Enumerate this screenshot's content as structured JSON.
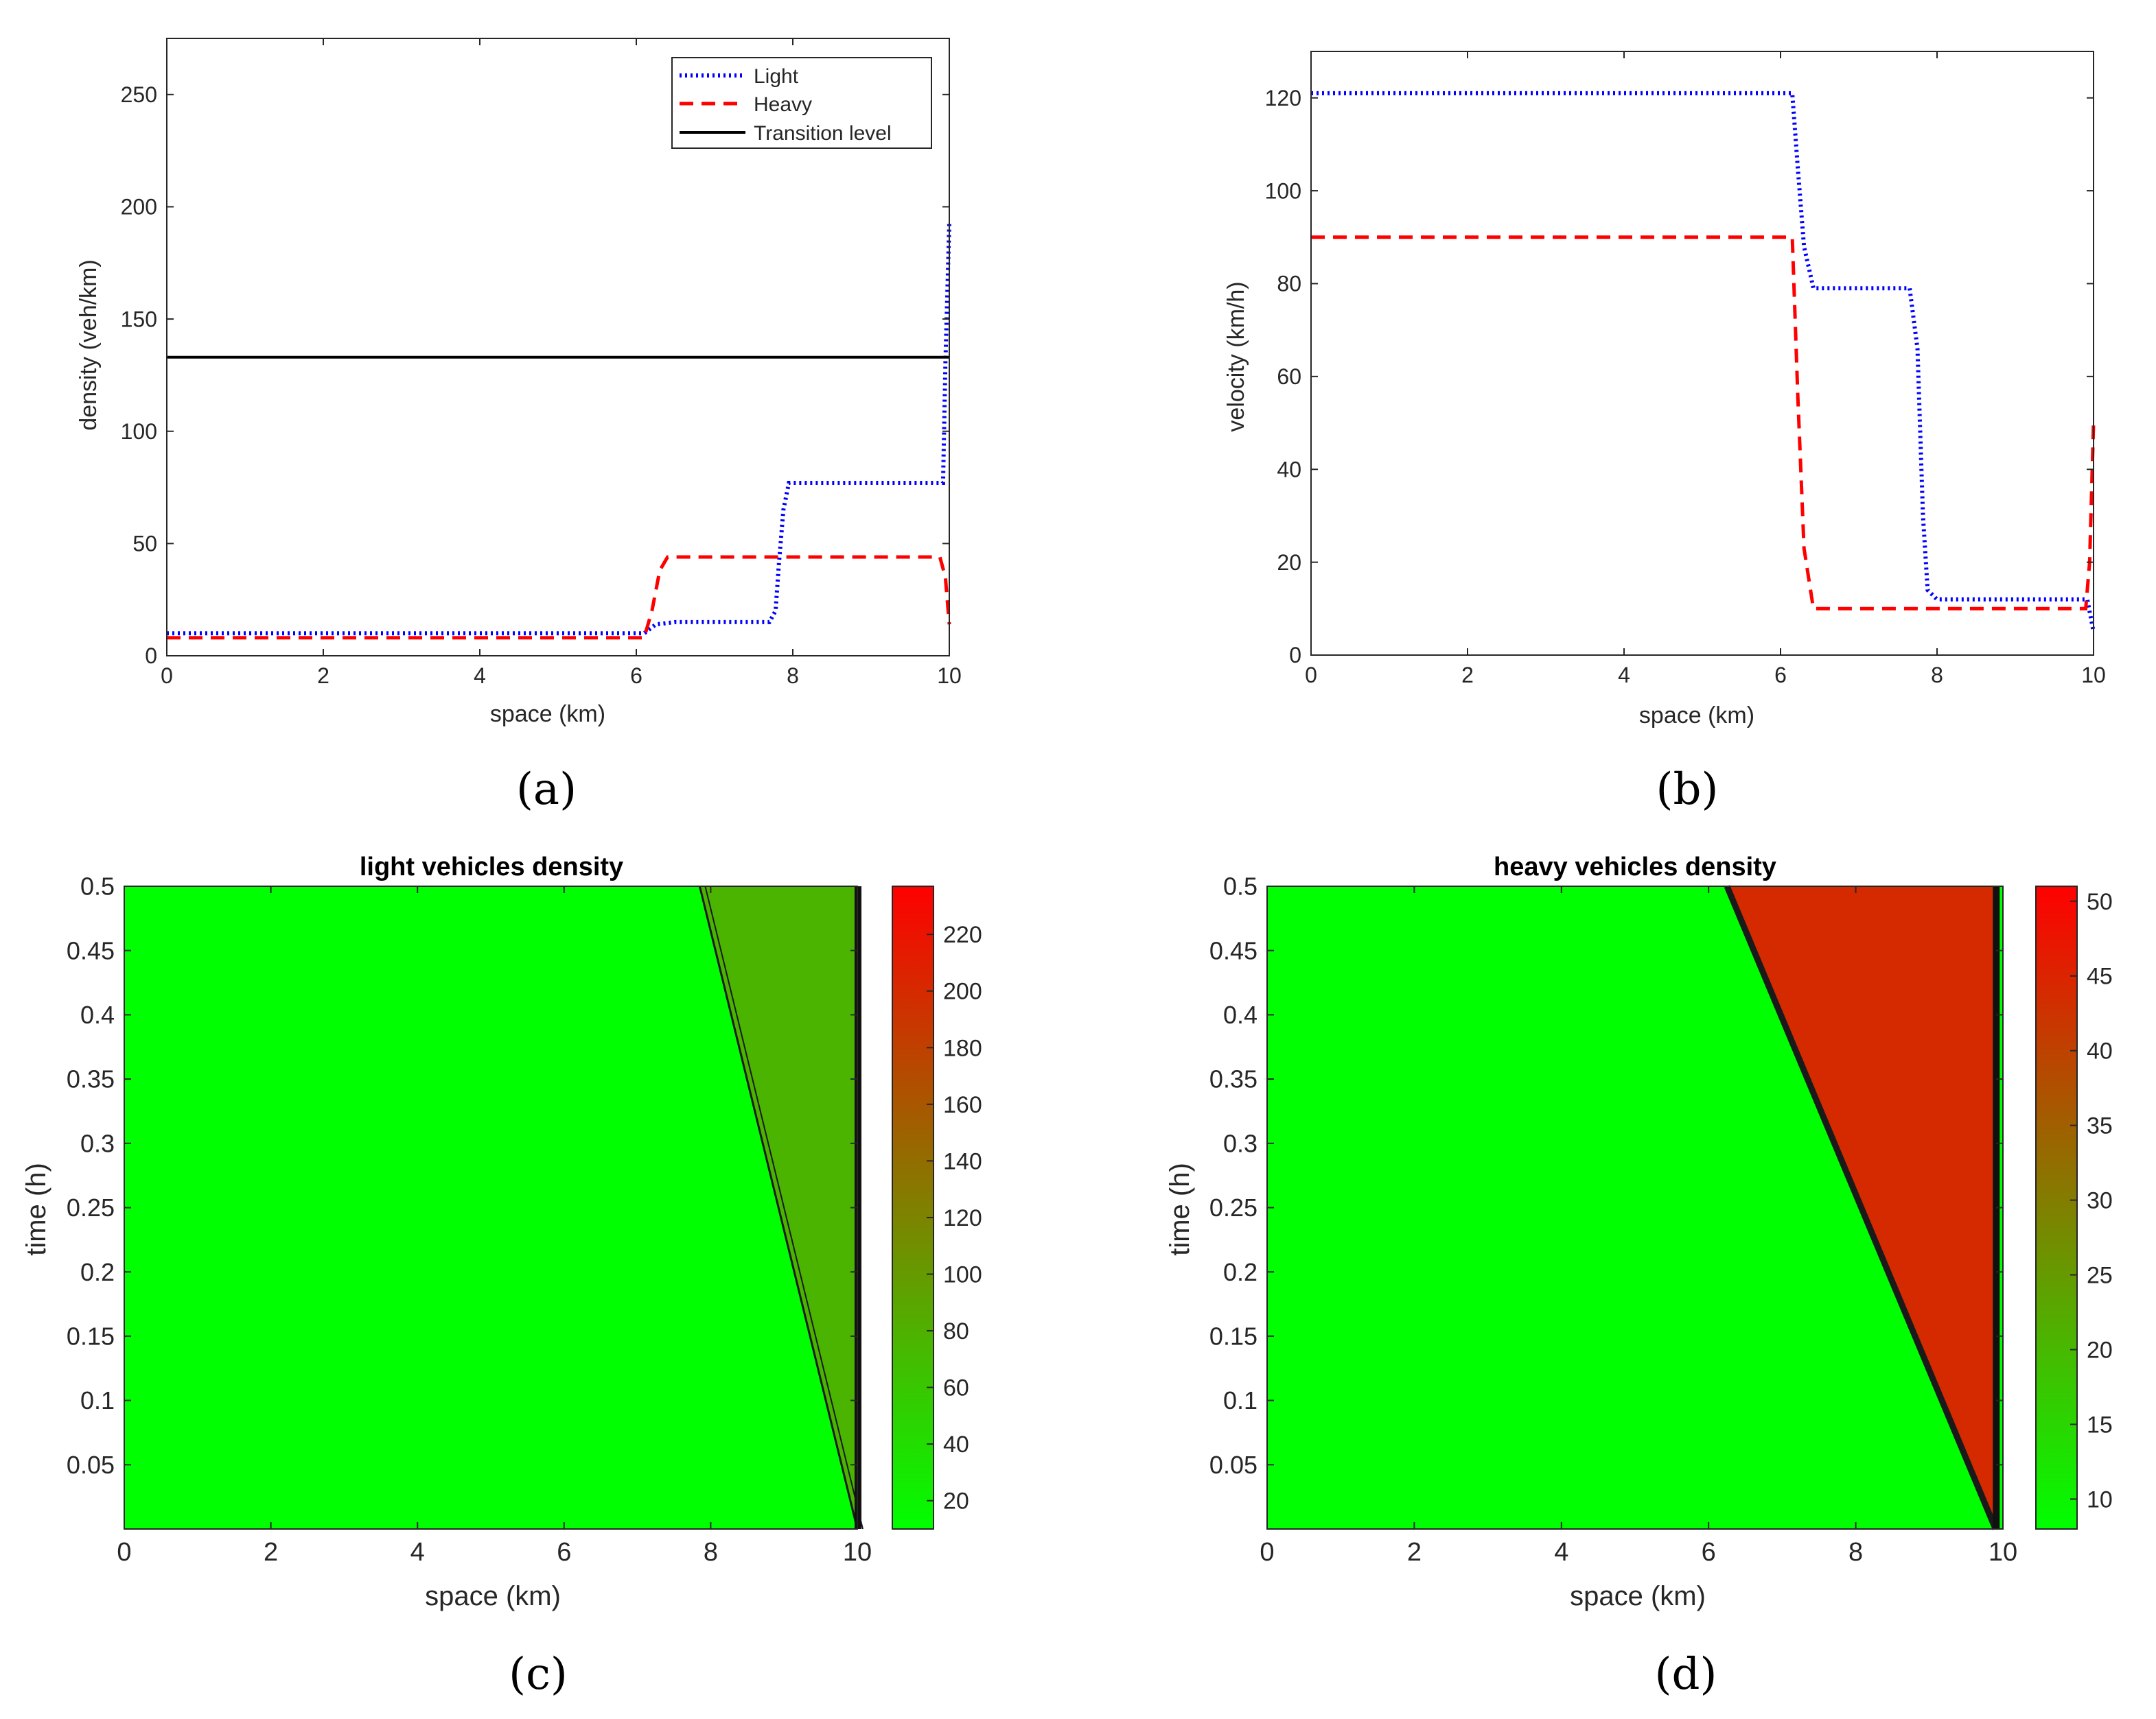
{
  "chart_data": [
    {
      "id": "a",
      "type": "line",
      "panel_label": "(a)",
      "title": "",
      "xlabel": "space (km)",
      "ylabel": "density (veh/km)",
      "xlim": [
        0,
        10
      ],
      "ylim": [
        0,
        275
      ],
      "xticks": [
        0,
        2,
        4,
        6,
        8,
        10
      ],
      "yticks": [
        0,
        50,
        100,
        150,
        200,
        250
      ],
      "legend_position": "top-right",
      "series": [
        {
          "name": "Light",
          "style": "dotted",
          "color": "#0000ff",
          "x": [
            0,
            6.1,
            6.25,
            6.5,
            7.7,
            7.78,
            7.82,
            7.88,
            7.95,
            9.92,
            9.95,
            10
          ],
          "y": [
            10,
            10,
            14,
            15,
            15,
            20,
            40,
            65,
            77,
            77,
            130,
            193
          ]
        },
        {
          "name": "Heavy",
          "style": "dashed",
          "color": "#ff0000",
          "x": [
            0,
            6.1,
            6.2,
            6.3,
            6.4,
            9.88,
            9.95,
            10
          ],
          "y": [
            8,
            8,
            20,
            38,
            44,
            44,
            35,
            14
          ]
        },
        {
          "name": "Transition level",
          "style": "solid",
          "color": "#000000",
          "x": [
            0,
            10
          ],
          "y": [
            133,
            133
          ]
        }
      ]
    },
    {
      "id": "b",
      "type": "line",
      "panel_label": "(b)",
      "title": "",
      "xlabel": "space (km)",
      "ylabel": "velocity (km/h)",
      "xlim": [
        0,
        10
      ],
      "ylim": [
        0,
        130
      ],
      "xticks": [
        0,
        2,
        4,
        6,
        8,
        10
      ],
      "yticks": [
        0,
        20,
        40,
        60,
        80,
        100,
        120
      ],
      "series": [
        {
          "name": "Light",
          "style": "dotted",
          "color": "#0000ff",
          "x": [
            0,
            6.15,
            6.22,
            6.3,
            6.42,
            7.65,
            7.75,
            7.82,
            7.88,
            8.0,
            9.92,
            10
          ],
          "y": [
            121,
            121,
            105,
            88,
            79,
            79,
            66,
            30,
            14,
            12,
            12,
            5
          ]
        },
        {
          "name": "Heavy",
          "style": "dashed",
          "color": "#ff0000",
          "x": [
            0,
            6.15,
            6.22,
            6.3,
            6.42,
            9.9,
            9.95,
            10
          ],
          "y": [
            90,
            90,
            56,
            23,
            10,
            10,
            20,
            50
          ]
        }
      ]
    },
    {
      "id": "c",
      "type": "heatmap",
      "panel_label": "(c)",
      "title": "light vehicles density",
      "xlabel": "space (km)",
      "ylabel": "time (h)",
      "xlim": [
        0,
        10
      ],
      "ylim": [
        0,
        0.5
      ],
      "xticks": [
        0,
        2,
        4,
        6,
        8,
        10
      ],
      "yticks": [
        0.05,
        0.1,
        0.15,
        0.2,
        0.25,
        0.3,
        0.35,
        0.4,
        0.45,
        0.5
      ],
      "ytick_labels": [
        "0.05",
        "0.1",
        "0.15",
        "0.2",
        "0.25",
        "0.3",
        "0.35",
        "0.4",
        "0.45",
        "0.5"
      ],
      "colorbar": {
        "range": [
          10,
          237
        ],
        "ticks": [
          20,
          40,
          60,
          80,
          100,
          120,
          140,
          160,
          180,
          200,
          220
        ]
      },
      "regions": [
        {
          "name": "free flow",
          "value": 10
        },
        {
          "name": "congested wedge",
          "value": 77,
          "vertices": [
            [
              7.85,
              0.5
            ],
            [
              10,
              0.0
            ],
            [
              10,
              0.5
            ]
          ]
        }
      ],
      "front_line": [
        [
          10,
          0.0
        ],
        [
          7.85,
          0.5
        ]
      ]
    },
    {
      "id": "d",
      "type": "heatmap",
      "panel_label": "(d)",
      "title": "heavy vehicles density",
      "xlabel": "space (km)",
      "ylabel": "time (h)",
      "xlim": [
        0,
        10
      ],
      "ylim": [
        0,
        0.5
      ],
      "xticks": [
        0,
        2,
        4,
        6,
        8,
        10
      ],
      "yticks": [
        0.05,
        0.1,
        0.15,
        0.2,
        0.25,
        0.3,
        0.35,
        0.4,
        0.45,
        0.5
      ],
      "ytick_labels": [
        "0.05",
        "0.1",
        "0.15",
        "0.2",
        "0.25",
        "0.3",
        "0.35",
        "0.4",
        "0.45",
        "0.5"
      ],
      "colorbar": {
        "range": [
          8,
          51
        ],
        "ticks": [
          10,
          15,
          20,
          25,
          30,
          35,
          40,
          45,
          50
        ]
      },
      "regions": [
        {
          "name": "free flow",
          "value": 8
        },
        {
          "name": "congested wedge",
          "value": 44,
          "vertices": [
            [
              6.25,
              0.5
            ],
            [
              9.9,
              0.0
            ],
            [
              9.9,
              0.5
            ]
          ]
        }
      ],
      "front_line": [
        [
          9.9,
          0.0
        ],
        [
          6.25,
          0.5
        ]
      ]
    }
  ]
}
